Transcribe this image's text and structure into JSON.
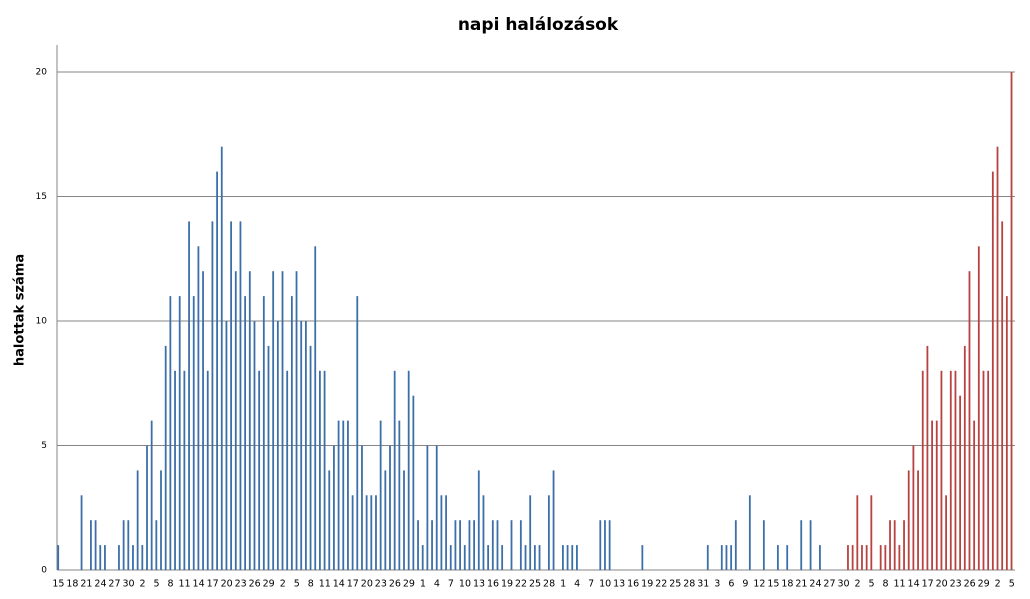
{
  "chart_data": {
    "type": "bar",
    "title": "napi halálozások",
    "y_label": "halottak száma",
    "categories": [
      "15",
      null,
      null,
      "18",
      null,
      null,
      "21",
      null,
      null,
      "24",
      null,
      null,
      "27",
      null,
      null,
      "30",
      null,
      null,
      "2",
      null,
      null,
      "5",
      null,
      null,
      "8",
      null,
      null,
      "11",
      null,
      null,
      "14",
      null,
      null,
      "17",
      null,
      null,
      "20",
      null,
      null,
      "23",
      null,
      null,
      "26",
      null,
      null,
      "29",
      null,
      null,
      "2",
      null,
      null,
      "5",
      null,
      null,
      "8",
      null,
      null,
      "11",
      null,
      null,
      "14",
      null,
      null,
      "17",
      null,
      null,
      "20",
      null,
      null,
      "23",
      null,
      null,
      "26",
      null,
      null,
      "29",
      null,
      null,
      "1",
      null,
      null,
      "4",
      null,
      null,
      "7",
      null,
      null,
      "10",
      null,
      null,
      "13",
      null,
      null,
      "16",
      null,
      null,
      "19",
      null,
      null,
      "22",
      null,
      null,
      "25",
      null,
      null,
      "28",
      null,
      null,
      "1",
      null,
      null,
      "4",
      null,
      null,
      "7",
      null,
      null,
      "10",
      null,
      null,
      "13",
      null,
      null,
      "16",
      null,
      null,
      "19",
      null,
      null,
      "22",
      null,
      null,
      "25",
      null,
      null,
      "28",
      null,
      null,
      "31",
      null,
      null,
      "3",
      null,
      null,
      "6",
      null,
      null,
      "9",
      null,
      null,
      "12",
      null,
      null,
      "15",
      null,
      null,
      "18",
      null,
      null,
      "21",
      null,
      null,
      "24",
      null,
      null,
      "27",
      null,
      null,
      "30",
      null,
      null,
      "2",
      null,
      null,
      "5",
      null,
      null,
      "8",
      null,
      null,
      "11",
      null,
      null,
      "14",
      null,
      null,
      "17",
      null,
      null,
      "20",
      null,
      null,
      "23",
      null,
      null,
      "26",
      null,
      null,
      "29",
      null,
      null,
      "2",
      null,
      null,
      "5"
    ],
    "series": [
      {
        "color": "#3c6fa8",
        "values": [
          1,
          0,
          0,
          0,
          0,
          3,
          0,
          2,
          2,
          1,
          1,
          0,
          0,
          1,
          2,
          2,
          1,
          4,
          1,
          5,
          6,
          2,
          4,
          9,
          11,
          8,
          11,
          8,
          14,
          11,
          13,
          12,
          8,
          14,
          16,
          17,
          10,
          14,
          12,
          14,
          11,
          12,
          10,
          8,
          11,
          9,
          12,
          10,
          12,
          8,
          11,
          12,
          10,
          10,
          9,
          13,
          8,
          8,
          4,
          5,
          6,
          6,
          6,
          3,
          11,
          5,
          3,
          3,
          3,
          6,
          4,
          5,
          8,
          6,
          4,
          8,
          7,
          2,
          1,
          5,
          2,
          5,
          3,
          3,
          1,
          2,
          2,
          1,
          2,
          2,
          4,
          3,
          1,
          2,
          2,
          1,
          0,
          2,
          0,
          2,
          1,
          3,
          1,
          1,
          0,
          3,
          4,
          0,
          1,
          1,
          1,
          1,
          0,
          0,
          0,
          0,
          2,
          2,
          2,
          0,
          0,
          0,
          0,
          0,
          0,
          1,
          0,
          0,
          0,
          0,
          0,
          0,
          0,
          0,
          0,
          0,
          0,
          0,
          0,
          1,
          0,
          0,
          1,
          1,
          1,
          2,
          0,
          0,
          3,
          0,
          0,
          2,
          0,
          0,
          1,
          0,
          1,
          0,
          0,
          2,
          0,
          2,
          0,
          1,
          0,
          0,
          0,
          0,
          0,
          null,
          null,
          null,
          null,
          null,
          null,
          null,
          null,
          null,
          null,
          null,
          null,
          null,
          null,
          null,
          null,
          null,
          null,
          null,
          null,
          null,
          null,
          null,
          null,
          null,
          null,
          null,
          null,
          null,
          null,
          null,
          null,
          null,
          null,
          null,
          null
        ]
      },
      {
        "color": "#b84240",
        "values": [
          null,
          null,
          null,
          null,
          null,
          null,
          null,
          null,
          null,
          null,
          null,
          null,
          null,
          null,
          null,
          null,
          null,
          null,
          null,
          null,
          null,
          null,
          null,
          null,
          null,
          null,
          null,
          null,
          null,
          null,
          null,
          null,
          null,
          null,
          null,
          null,
          null,
          null,
          null,
          null,
          null,
          null,
          null,
          null,
          null,
          null,
          null,
          null,
          null,
          null,
          null,
          null,
          null,
          null,
          null,
          null,
          null,
          null,
          null,
          null,
          null,
          null,
          null,
          null,
          null,
          null,
          null,
          null,
          null,
          null,
          null,
          null,
          null,
          null,
          null,
          null,
          null,
          null,
          null,
          null,
          null,
          null,
          null,
          null,
          null,
          null,
          null,
          null,
          null,
          null,
          null,
          null,
          null,
          null,
          null,
          null,
          null,
          null,
          null,
          null,
          null,
          null,
          null,
          null,
          null,
          null,
          null,
          null,
          null,
          null,
          null,
          null,
          null,
          null,
          null,
          null,
          null,
          null,
          null,
          null,
          null,
          null,
          null,
          null,
          null,
          null,
          null,
          null,
          null,
          null,
          null,
          null,
          null,
          null,
          null,
          null,
          null,
          null,
          null,
          null,
          null,
          null,
          null,
          null,
          null,
          null,
          null,
          null,
          null,
          null,
          null,
          null,
          null,
          null,
          null,
          null,
          null,
          null,
          null,
          null,
          null,
          null,
          null,
          null,
          null,
          null,
          null,
          null,
          null,
          1,
          1,
          3,
          1,
          1,
          3,
          0,
          1,
          1,
          2,
          2,
          1,
          2,
          4,
          5,
          4,
          8,
          9,
          6,
          6,
          8,
          3,
          8,
          8,
          7,
          9,
          12,
          6,
          13,
          8,
          8,
          16,
          17,
          14,
          11,
          20
        ]
      }
    ],
    "ylim": [
      0,
      20
    ],
    "yticks": [
      0,
      5,
      10,
      15,
      20
    ],
    "grid": true
  }
}
